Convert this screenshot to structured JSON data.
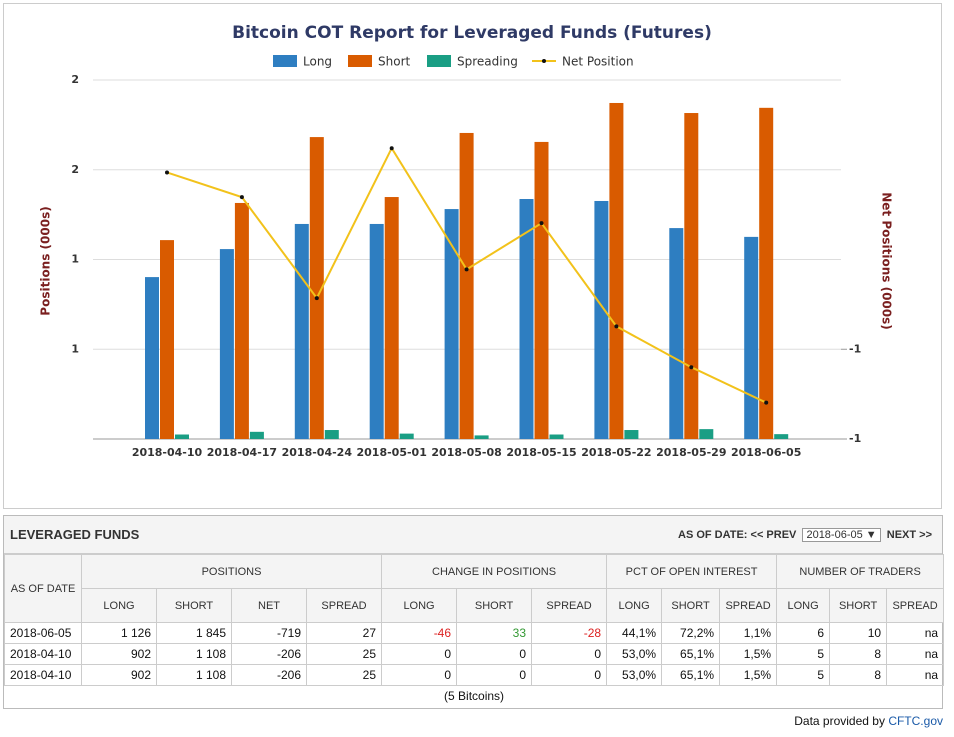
{
  "chart_data": {
    "type": "bar",
    "title": "Bitcoin COT Report for Leveraged Funds (Futures)",
    "y_label": "Positions (000s)",
    "y2_label": "Net Positions (000s)",
    "categories": [
      "2018-04-10",
      "2018-04-17",
      "2018-04-24",
      "2018-05-01",
      "2018-05-08",
      "2018-05-15",
      "2018-05-22",
      "2018-05-29",
      "2018-06-05"
    ],
    "series": [
      {
        "name": "Long",
        "color": "#2e7ec1",
        "values": [
          0.902,
          1.058,
          1.198,
          1.198,
          1.281,
          1.337,
          1.326,
          1.175,
          1.126
        ]
      },
      {
        "name": "Short",
        "color": "#d95b00",
        "values": [
          1.108,
          1.315,
          1.682,
          1.348,
          1.705,
          1.655,
          1.872,
          1.816,
          1.845
        ]
      },
      {
        "name": "Spreading",
        "color": "#1a9e84",
        "values": [
          0.025,
          0.04,
          0.05,
          0.03,
          0.02,
          0.025,
          0.05,
          0.055,
          0.027
        ]
      },
      {
        "name": "Net Position",
        "color": "#f2c21b",
        "type": "line",
        "axis": "y2",
        "values": [
          -0.206,
          -0.261,
          -0.486,
          -0.152,
          -0.422,
          -0.319,
          -0.549,
          -0.64,
          -0.719
        ]
      }
    ],
    "ylim": [
      0,
      2
    ],
    "yticks": [
      {
        "value": 0.5,
        "label": "1"
      },
      {
        "value": 1,
        "label": "1"
      },
      {
        "value": 1.5,
        "label": "2"
      },
      {
        "value": 2,
        "label": "2"
      }
    ],
    "y2lim": [
      -0.8,
      0
    ],
    "y2ticks": [
      {
        "value": -0.8,
        "label": "-1"
      },
      {
        "value": -0.6,
        "label": "-1"
      }
    ],
    "grid": true
  },
  "table": {
    "title": "LEVERAGED FUNDS",
    "as_of_label": "AS OF DATE:",
    "prev": "<< PREV",
    "selected": "2018-06-05",
    "next": "NEXT >>",
    "row_header": "AS OF DATE",
    "groups": [
      "POSITIONS",
      "CHANGE IN POSITIONS",
      "PCT OF OPEN INTEREST",
      "NUMBER OF TRADERS"
    ],
    "subheaders": [
      "LONG",
      "SHORT",
      "NET",
      "SPREAD",
      "LONG",
      "SHORT",
      "SPREAD",
      "LONG",
      "SHORT",
      "SPREAD",
      "LONG",
      "SHORT",
      "SPREAD"
    ],
    "rows": [
      [
        "2018-06-05",
        "1 126",
        "1 845",
        "-719",
        "27",
        "-46",
        "33",
        "-28",
        "44,1%",
        "72,2%",
        "1,1%",
        "6",
        "10",
        "na"
      ],
      [
        "2018-04-10",
        "902",
        "1 108",
        "-206",
        "25",
        "0",
        "0",
        "0",
        "53,0%",
        "65,1%",
        "1,5%",
        "5",
        "8",
        "na"
      ],
      [
        "2018-04-10",
        "902",
        "1 108",
        "-206",
        "25",
        "0",
        "0",
        "0",
        "53,0%",
        "65,1%",
        "1,5%",
        "5",
        "8",
        "na"
      ]
    ],
    "note": "(5 Bitcoins)"
  },
  "footer": {
    "text": "Data provided by",
    "link": "CFTC.gov"
  }
}
